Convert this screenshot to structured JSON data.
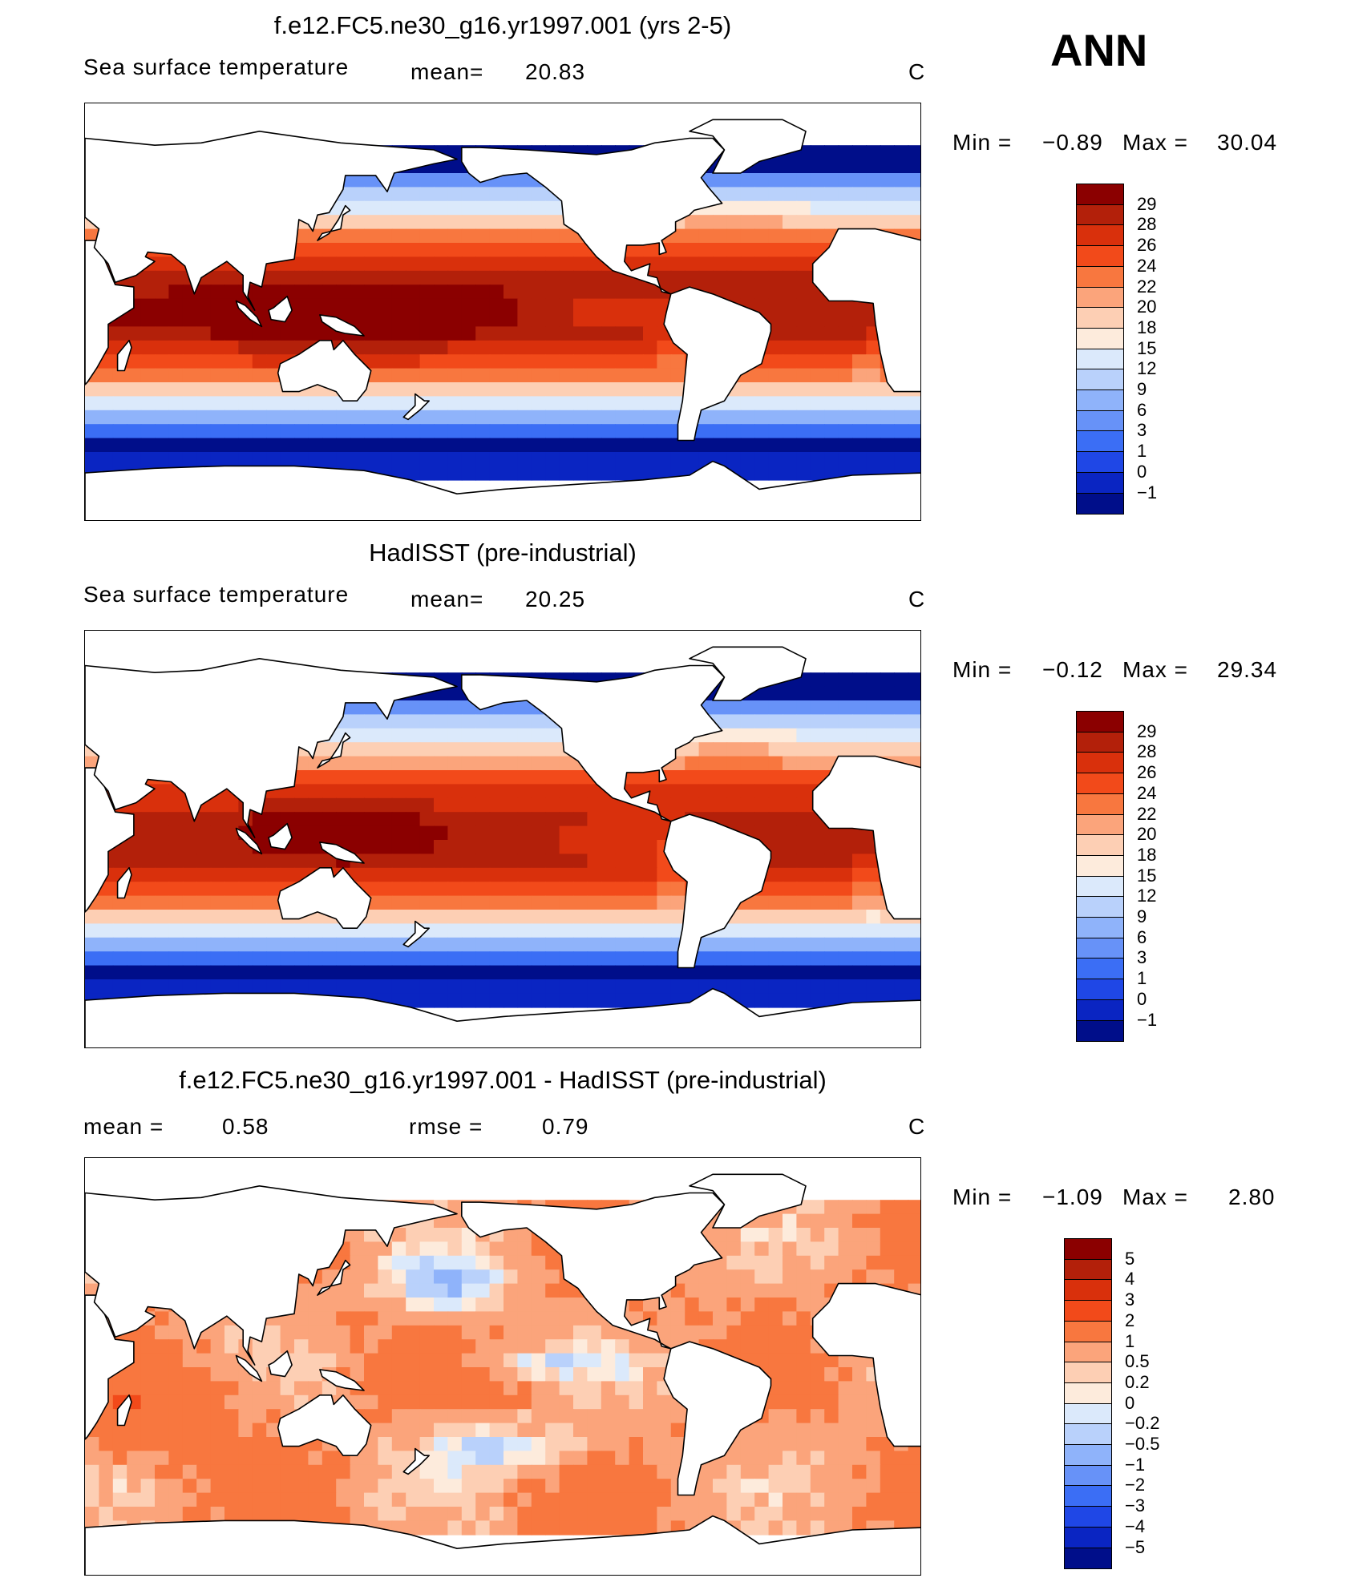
{
  "season": "ANN",
  "panels": [
    {
      "title": "f.e12.FC5.ne30_g16.yr1997.001 (yrs 2-5)",
      "variable": "Sea surface temperature",
      "stat_label": "mean=",
      "stat_value": "20.83",
      "stat2_label": "",
      "stat2_value": "",
      "units": "C",
      "min_label": "Min =",
      "min_value": "−0.89",
      "max_label": "Max =",
      "max_value": "30.04",
      "field": "model"
    },
    {
      "title": "HadISST (pre-industrial)",
      "variable": "Sea surface temperature",
      "stat_label": "mean=",
      "stat_value": "20.25",
      "stat2_label": "",
      "stat2_value": "",
      "units": "C",
      "min_label": "Min =",
      "min_value": "−0.12",
      "max_label": "Max =",
      "max_value": "29.34",
      "field": "obs"
    },
    {
      "title": "f.e12.FC5.ne30_g16.yr1997.001 - HadISST (pre-industrial)",
      "variable": "",
      "stat_label": "mean =",
      "stat_value": "0.58",
      "stat2_label": "rmse =",
      "stat2_value": "0.79",
      "units": "C",
      "min_label": "Min =",
      "min_value": "−1.09",
      "max_label": "Max =",
      "max_value": "2.80",
      "field": "diff"
    }
  ],
  "colorbars": {
    "sst": {
      "labels": [
        "29",
        "28",
        "26",
        "24",
        "22",
        "20",
        "18",
        "15",
        "12",
        "9",
        "6",
        "3",
        "1",
        "0",
        "−1"
      ],
      "colors": [
        "#8b0000",
        "#b3200a",
        "#d9300c",
        "#f24a1a",
        "#f8773f",
        "#fba47b",
        "#fdcfb4",
        "#fdebdc",
        "#dbe9fb",
        "#b9d1fb",
        "#8fb3fa",
        "#6792f8",
        "#3b6ef5",
        "#1f47e6",
        "#0a25c2",
        "#000e8a"
      ]
    },
    "diff": {
      "labels": [
        "5",
        "4",
        "3",
        "2",
        "1",
        "0.5",
        "0.2",
        "0",
        "−0.2",
        "−0.5",
        "−1",
        "−2",
        "−3",
        "−4",
        "−5"
      ],
      "colors": [
        "#8b0000",
        "#b3200a",
        "#d9300c",
        "#f24a1a",
        "#f8773f",
        "#fba47b",
        "#fdcfb4",
        "#fdebdc",
        "#dbe9fb",
        "#b9d1fb",
        "#8fb3fa",
        "#6792f8",
        "#3b6ef5",
        "#1f47e6",
        "#0a25c2",
        "#000e8a"
      ]
    }
  }
}
